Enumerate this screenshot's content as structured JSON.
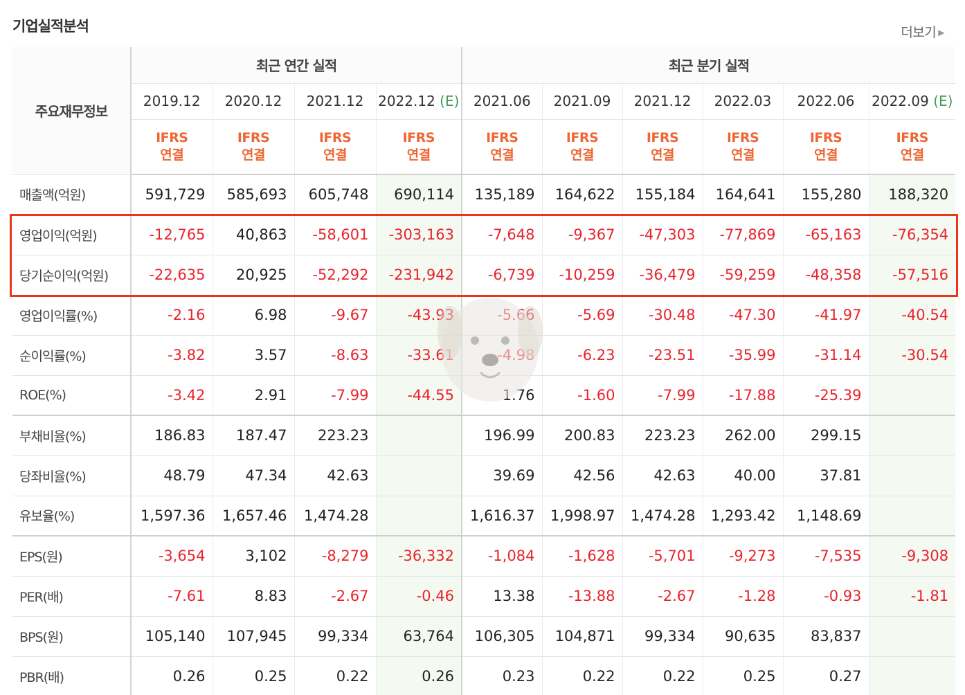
{
  "title": "기업실적분석",
  "more_label": "더보기",
  "corner_label": "주요재무정보",
  "annual_header": "최근 연간 실적",
  "quarter_header": "최근 분기 실적",
  "periods": [
    {
      "label": "2019.12",
      "estimate": ""
    },
    {
      "label": "2020.12",
      "estimate": ""
    },
    {
      "label": "2021.12",
      "estimate": ""
    },
    {
      "label": "2022.12",
      "estimate": "(E)"
    },
    {
      "label": "2021.06",
      "estimate": ""
    },
    {
      "label": "2021.09",
      "estimate": ""
    },
    {
      "label": "2021.12",
      "estimate": ""
    },
    {
      "label": "2022.03",
      "estimate": ""
    },
    {
      "label": "2022.06",
      "estimate": ""
    },
    {
      "label": "2022.09",
      "estimate": "(E)"
    }
  ],
  "ifrs_line1": "IFRS",
  "ifrs_line2": "연결",
  "rows": [
    {
      "label": "매출액(억원)",
      "values": [
        "591,729",
        "585,693",
        "605,748",
        "690,114",
        "135,189",
        "164,622",
        "155,184",
        "164,641",
        "155,280",
        "188,320"
      ],
      "group_end": true
    },
    {
      "label": "영업이익(억원)",
      "values": [
        "-12,765",
        "40,863",
        "-58,601",
        "-303,163",
        "-7,648",
        "-9,367",
        "-47,303",
        "-77,869",
        "-65,163",
        "-76,354"
      ],
      "group_end": false
    },
    {
      "label": "당기순이익(억원)",
      "values": [
        "-22,635",
        "20,925",
        "-52,292",
        "-231,942",
        "-6,739",
        "-10,259",
        "-36,479",
        "-59,259",
        "-48,358",
        "-57,516"
      ],
      "group_end": false
    },
    {
      "label": "영업이익률(%)",
      "values": [
        "-2.16",
        "6.98",
        "-9.67",
        "-43.93",
        "-5.66",
        "-5.69",
        "-30.48",
        "-47.30",
        "-41.97",
        "-40.54"
      ],
      "group_end": false
    },
    {
      "label": "순이익률(%)",
      "values": [
        "-3.82",
        "3.57",
        "-8.63",
        "-33.61",
        "-4.98",
        "-6.23",
        "-23.51",
        "-35.99",
        "-31.14",
        "-30.54"
      ],
      "group_end": false
    },
    {
      "label": "ROE(%)",
      "values": [
        "-3.42",
        "2.91",
        "-7.99",
        "-44.55",
        "1.76",
        "-1.60",
        "-7.99",
        "-17.88",
        "-25.39",
        ""
      ],
      "group_end": true
    },
    {
      "label": "부채비율(%)",
      "values": [
        "186.83",
        "187.47",
        "223.23",
        "",
        "196.99",
        "200.83",
        "223.23",
        "262.00",
        "299.15",
        ""
      ],
      "group_end": false
    },
    {
      "label": "당좌비율(%)",
      "values": [
        "48.79",
        "47.34",
        "42.63",
        "",
        "39.69",
        "42.56",
        "42.63",
        "40.00",
        "37.81",
        ""
      ],
      "group_end": false
    },
    {
      "label": "유보율(%)",
      "values": [
        "1,597.36",
        "1,657.46",
        "1,474.28",
        "",
        "1,616.37",
        "1,998.97",
        "1,474.28",
        "1,293.42",
        "1,148.69",
        ""
      ],
      "group_end": true
    },
    {
      "label": "EPS(원)",
      "values": [
        "-3,654",
        "3,102",
        "-8,279",
        "-36,332",
        "-1,084",
        "-1,628",
        "-5,701",
        "-9,273",
        "-7,535",
        "-9,308"
      ],
      "group_end": false
    },
    {
      "label": "PER(배)",
      "values": [
        "-7.61",
        "8.83",
        "-2.67",
        "-0.46",
        "13.38",
        "-13.88",
        "-2.67",
        "-1.28",
        "-0.93",
        "-1.81"
      ],
      "group_end": false
    },
    {
      "label": "BPS(원)",
      "values": [
        "105,140",
        "107,945",
        "99,334",
        "63,764",
        "106,305",
        "104,871",
        "99,334",
        "90,635",
        "83,837",
        ""
      ],
      "group_end": false
    },
    {
      "label": "PBR(배)",
      "values": [
        "0.26",
        "0.25",
        "0.22",
        "0.26",
        "0.23",
        "0.22",
        "0.22",
        "0.25",
        "0.27",
        ""
      ],
      "group_end": false
    }
  ],
  "colors": {
    "negative": "#e8242d",
    "ifrs": "#ee6633",
    "estimate_mark": "#3f9a55",
    "highlight": "#e8371a"
  }
}
